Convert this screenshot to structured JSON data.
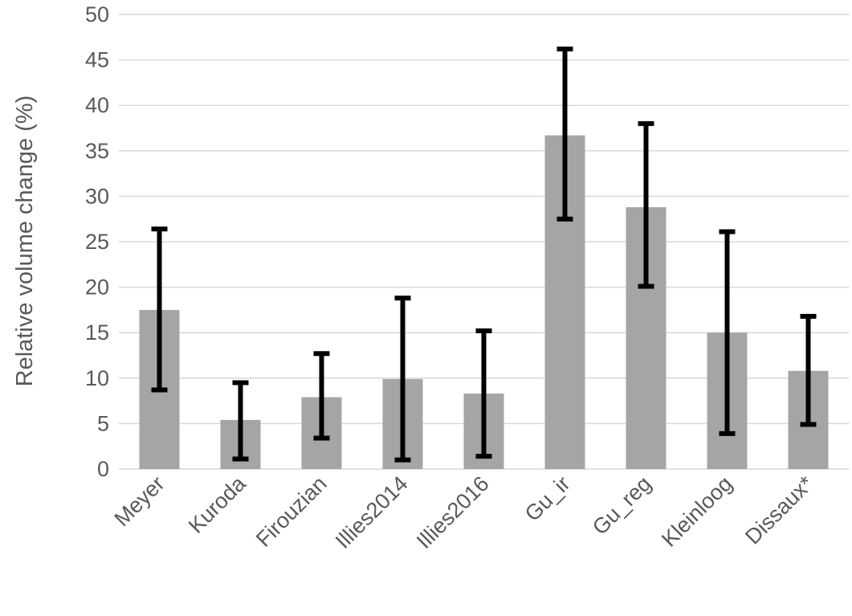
{
  "chart_data": {
    "type": "bar",
    "title": "",
    "xlabel": "",
    "ylabel": "Relative volume change (%)",
    "ylim": [
      0,
      50
    ],
    "yticks": [
      0,
      5,
      10,
      15,
      20,
      25,
      30,
      35,
      40,
      45,
      50
    ],
    "grid": true,
    "legend": "none",
    "categories": [
      "Meyer",
      "Kuroda",
      "Firouzian",
      "Illies2014",
      "Illies2016",
      "Gu_ir",
      "Gu_reg",
      "Kleinloog",
      "Dissaux*"
    ],
    "values": [
      17.5,
      5.4,
      7.9,
      9.9,
      8.3,
      36.7,
      28.8,
      15.0,
      10.8
    ],
    "error_low": [
      8.7,
      1.1,
      3.4,
      1.0,
      1.4,
      27.5,
      20.1,
      3.9,
      4.9
    ],
    "error_high": [
      26.4,
      9.5,
      12.7,
      18.8,
      15.2,
      46.2,
      38.0,
      26.1,
      16.8
    ],
    "colors": {
      "bar": "#a5a5a5",
      "error_bar": "#000000",
      "grid": "#d9d9d9",
      "text": "#595959"
    }
  }
}
